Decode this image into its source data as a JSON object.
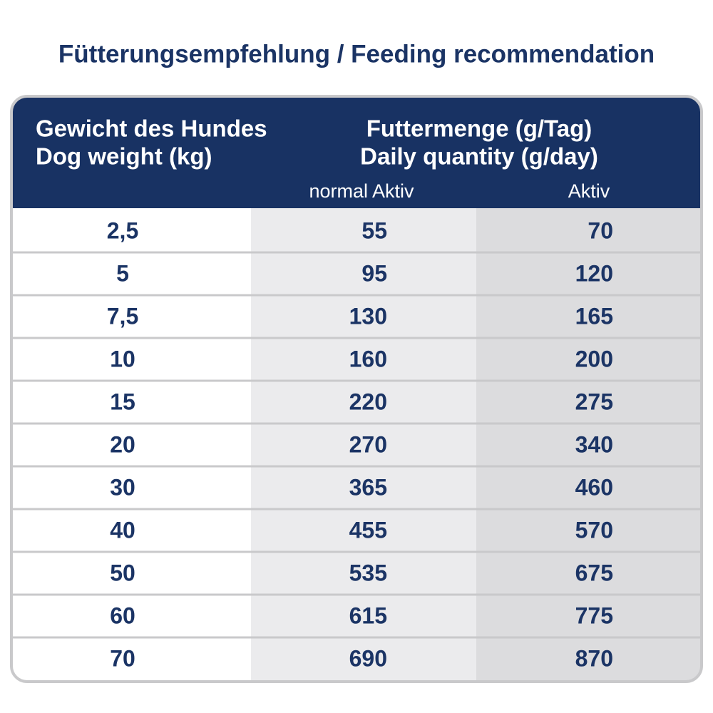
{
  "title": "Fütterungsempfehlung / Feeding recommendation",
  "table": {
    "header": {
      "weight": [
        "Gewicht des Hundes",
        "Dog weight (kg)"
      ],
      "quantity": [
        "Futtermenge (g/Tag)",
        "Daily quantity (g/day)"
      ],
      "subcolumns": [
        "normal Aktiv",
        "Aktiv"
      ]
    },
    "rows": [
      [
        "2,5",
        "55",
        "70"
      ],
      [
        "5",
        "95",
        "120"
      ],
      [
        "7,5",
        "130",
        "165"
      ],
      [
        "10",
        "160",
        "200"
      ],
      [
        "15",
        "220",
        "275"
      ],
      [
        "20",
        "270",
        "340"
      ],
      [
        "30",
        "365",
        "460"
      ],
      [
        "40",
        "455",
        "570"
      ],
      [
        "50",
        "535",
        "675"
      ],
      [
        "60",
        "615",
        "775"
      ],
      [
        "70",
        "690",
        "870"
      ]
    ]
  }
}
